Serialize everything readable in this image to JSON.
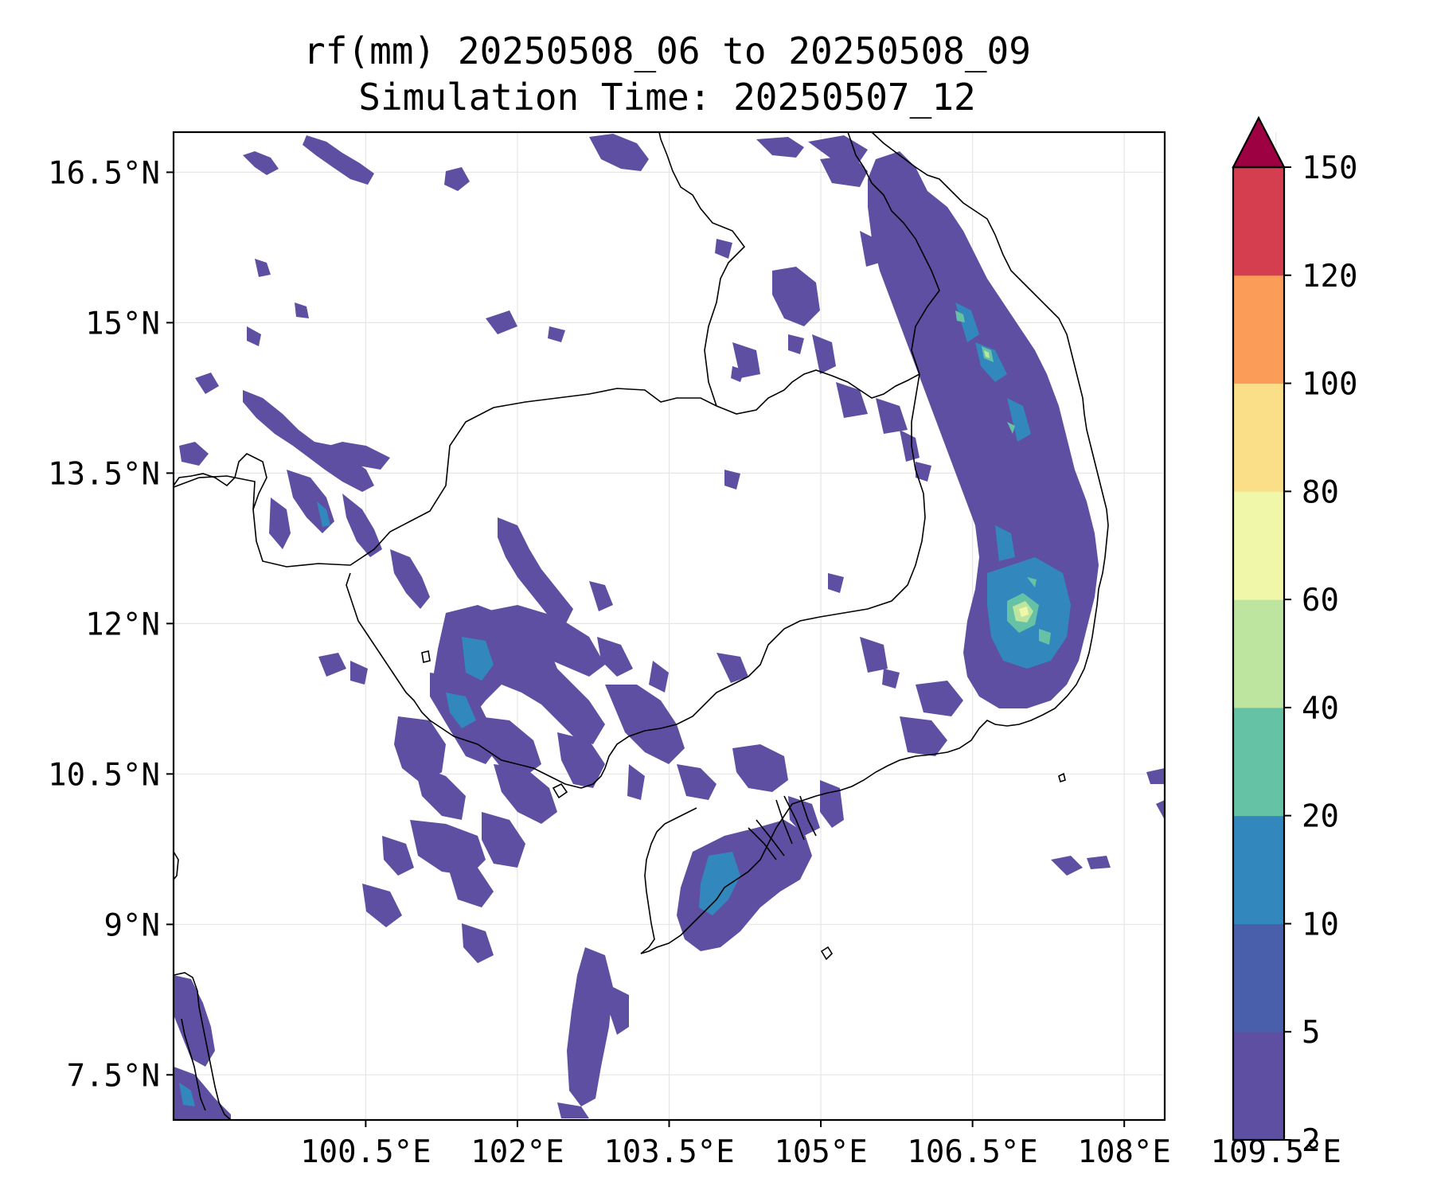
{
  "title": {
    "line1": "rf(mm) 20250508_06 to 20250508_09",
    "line2": "Simulation Time: 20250507_12"
  },
  "chart_data": {
    "type": "heatmap",
    "description_variable": "rf(mm)",
    "x_axis": {
      "ticks": [
        100.5,
        102,
        103.5,
        105,
        106.5,
        108,
        109.5
      ],
      "tick_labels": [
        "100.5°E",
        "102°E",
        "103.5°E",
        "105°E",
        "106.5°E",
        "108°E",
        "109.5°E"
      ],
      "range": [
        98.6,
        108.4
      ]
    },
    "y_axis": {
      "ticks": [
        16.5,
        15,
        13.5,
        12,
        10.5,
        9,
        7.5
      ],
      "tick_labels": [
        "16.5°N",
        "15°N",
        "13.5°N",
        "12°N",
        "10.5°N",
        "9°N",
        "7.5°N"
      ],
      "range": [
        7.05,
        16.9
      ]
    },
    "grid": true,
    "colorbar": {
      "levels": [
        2,
        5,
        10,
        20,
        40,
        60,
        80,
        100,
        120,
        150
      ],
      "level_labels": [
        "2",
        "5",
        "10",
        "20",
        "40",
        "60",
        "80",
        "100",
        "120",
        "150"
      ],
      "colors": [
        "#5e4fa2",
        "#4a5fac",
        "#3288bd",
        "#66c2a5",
        "#bde5a0",
        "#f1f7a9",
        "#fbde88",
        "#fb9d59",
        "#d53e4f"
      ],
      "extend_max_color": "#9e0142",
      "extend": "max"
    }
  }
}
